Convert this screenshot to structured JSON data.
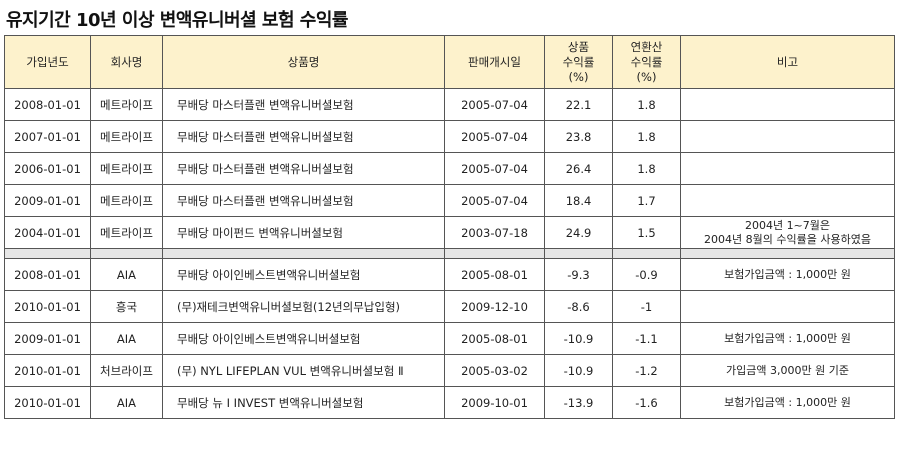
{
  "title": "유지기간 10년 이상 변액유니버셜 보험 수익률",
  "headers": {
    "join_year": "가입년도",
    "company": "회사명",
    "product": "상품명",
    "launch_date": "판매개시일",
    "product_return": [
      "상품",
      "수익률",
      "(%)"
    ],
    "annual_return": [
      "연환산",
      "수익률",
      "(%)"
    ],
    "note": "비고"
  },
  "group1": [
    {
      "join": "2008-01-01",
      "company": "메트라이프",
      "product": "무배당 마스터플랜 변액유니버셜보험",
      "launch": "2005-07-04",
      "ret": "22.1",
      "annual": "1.8",
      "note": ""
    },
    {
      "join": "2007-01-01",
      "company": "메트라이프",
      "product": "무배당 마스터플랜 변액유니버셜보험",
      "launch": "2005-07-04",
      "ret": "23.8",
      "annual": "1.8",
      "note": ""
    },
    {
      "join": "2006-01-01",
      "company": "메트라이프",
      "product": "무배당 마스터플랜 변액유니버셜보험",
      "launch": "2005-07-04",
      "ret": "26.4",
      "annual": "1.8",
      "note": ""
    },
    {
      "join": "2009-01-01",
      "company": "메트라이프",
      "product": "무배당 마스터플랜 변액유니버셜보험",
      "launch": "2005-07-04",
      "ret": "18.4",
      "annual": "1.7",
      "note": ""
    },
    {
      "join": "2004-01-01",
      "company": "메트라이프",
      "product": "무배당 마이펀드 변액유니버셜보험",
      "launch": "2003-07-18",
      "ret": "24.9",
      "annual": "1.5",
      "note": [
        "2004년 1~7월은",
        "2004년 8월의 수익률을 사용하였음"
      ]
    }
  ],
  "group2": [
    {
      "join": "2008-01-01",
      "company": "AIA",
      "product": "무배당 아이인베스트변액유니버셜보험",
      "launch": "2005-08-01",
      "ret": "-9.3",
      "annual": "-0.9",
      "note": "보험가입금액 : 1,000만 원"
    },
    {
      "join": "2010-01-01",
      "company": "흥국",
      "product": "(무)재테크변액유니버셜보험(12년의무납입형)",
      "launch": "2009-12-10",
      "ret": "-8.6",
      "annual": "-1",
      "note": ""
    },
    {
      "join": "2009-01-01",
      "company": "AIA",
      "product": "무배당 아이인베스트변액유니버셜보험",
      "launch": "2005-08-01",
      "ret": "-10.9",
      "annual": "-1.1",
      "note": "보험가입금액 : 1,000만 원"
    },
    {
      "join": "2010-01-01",
      "company": "처브라이프",
      "product": "(무) NYL LIFEPLAN VUL 변액유니버셜보험 Ⅱ",
      "launch": "2005-03-02",
      "ret": "-10.9",
      "annual": "-1.2",
      "note": "가입금액 3,000만 원 기준"
    },
    {
      "join": "2010-01-01",
      "company": "AIA",
      "product": "무배당 뉴 I INVEST 변액유니버셜보험",
      "launch": "2009-10-01",
      "ret": "-13.9",
      "annual": "-1.6",
      "note": "보험가입금액 : 1,000만 원"
    }
  ]
}
